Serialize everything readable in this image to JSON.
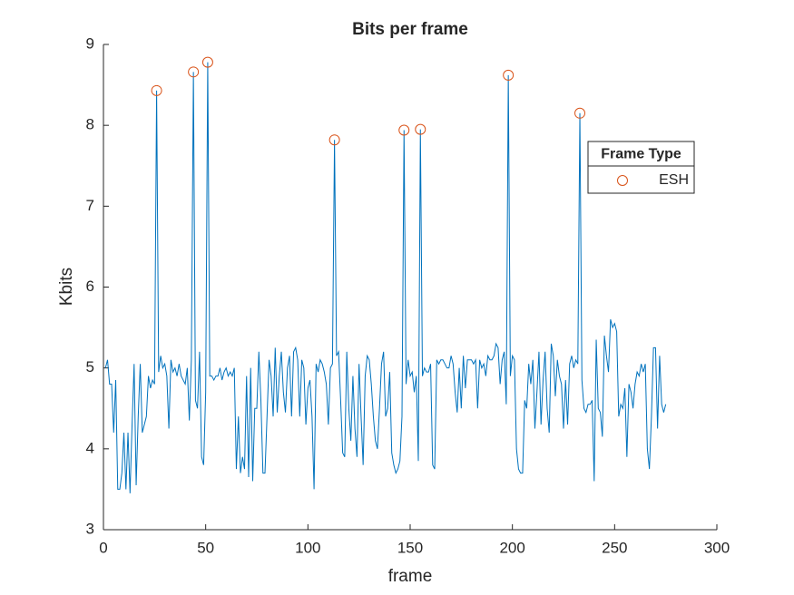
{
  "chart_data": {
    "type": "line",
    "title": "Bits per frame",
    "xlabel": "frame",
    "ylabel": "Kbits",
    "xlim": [
      0,
      300
    ],
    "xticks": [
      0,
      50,
      100,
      150,
      200,
      250,
      300
    ],
    "ylim": [
      3,
      9
    ],
    "yticks": [
      3,
      4,
      5,
      6,
      7,
      8,
      9
    ],
    "grid": false,
    "legend": {
      "title": "Frame Type",
      "position": "northeast"
    },
    "series": [
      {
        "type": "line",
        "color": "#0072bd",
        "x": [
          1,
          2,
          3,
          4,
          5,
          6,
          7,
          8,
          9,
          10,
          11,
          12,
          13,
          14,
          15,
          16,
          17,
          18,
          19,
          20,
          21,
          22,
          23,
          24,
          25,
          26,
          27,
          28,
          29,
          30,
          31,
          32,
          33,
          34,
          35,
          36,
          37,
          38,
          39,
          40,
          41,
          42,
          43,
          44,
          45,
          46,
          47,
          48,
          49,
          50,
          51,
          52,
          53,
          54,
          55,
          56,
          57,
          58,
          59,
          60,
          61,
          62,
          63,
          64,
          65,
          66,
          67,
          68,
          69,
          70,
          71,
          72,
          73,
          74,
          75,
          76,
          77,
          78,
          79,
          80,
          81,
          82,
          83,
          84,
          85,
          86,
          87,
          88,
          89,
          90,
          91,
          92,
          93,
          94,
          95,
          96,
          97,
          98,
          99,
          100,
          101,
          102,
          103,
          104,
          105,
          106,
          107,
          108,
          109,
          110,
          111,
          112,
          113,
          114,
          115,
          116,
          117,
          118,
          119,
          120,
          121,
          122,
          123,
          124,
          125,
          126,
          127,
          128,
          129,
          130,
          131,
          132,
          133,
          134,
          135,
          136,
          137,
          138,
          139,
          140,
          141,
          142,
          143,
          144,
          145,
          146,
          147,
          148,
          149,
          150,
          151,
          152,
          153,
          154,
          155,
          156,
          157,
          158,
          159,
          160,
          161,
          162,
          163,
          164,
          165,
          166,
          167,
          168,
          169,
          170,
          171,
          172,
          173,
          174,
          175,
          176,
          177,
          178,
          179,
          180,
          181,
          182,
          183,
          184,
          185,
          186,
          187,
          188,
          189,
          190,
          191,
          192,
          193,
          194,
          195,
          196,
          197,
          198,
          199,
          200,
          201,
          202,
          203,
          204,
          205,
          206,
          207,
          208,
          209,
          210,
          211,
          212,
          213,
          214,
          215,
          216,
          217,
          218,
          219,
          220,
          221,
          222,
          223,
          224,
          225,
          226,
          227,
          228,
          229,
          230,
          231,
          232,
          233,
          234,
          235,
          236,
          237,
          238,
          239,
          240,
          241,
          242,
          243,
          244,
          245,
          246,
          247,
          248,
          249,
          250,
          251,
          252,
          253,
          254,
          255,
          256,
          257,
          258,
          259,
          260,
          261,
          262,
          263,
          264,
          265,
          266,
          267,
          268,
          269,
          270,
          271,
          272,
          273,
          274,
          275
        ],
        "values": [
          5.0,
          5.1,
          4.8,
          4.8,
          4.2,
          4.85,
          3.5,
          3.5,
          3.7,
          4.2,
          3.5,
          4.2,
          3.45,
          4.3,
          5.05,
          3.55,
          4.4,
          5.05,
          4.2,
          4.3,
          4.4,
          4.9,
          4.75,
          4.85,
          4.8,
          8.43,
          4.95,
          5.15,
          5.0,
          5.05,
          4.9,
          4.25,
          5.1,
          4.95,
          5.0,
          4.9,
          5.05,
          4.9,
          4.85,
          4.8,
          5.0,
          4.35,
          5.1,
          8.66,
          4.6,
          4.5,
          5.2,
          3.9,
          3.8,
          4.7,
          8.78,
          4.9,
          4.9,
          4.85,
          4.9,
          4.9,
          5.0,
          4.85,
          4.95,
          5.0,
          4.9,
          4.95,
          4.9,
          5.0,
          3.75,
          4.4,
          3.7,
          3.9,
          3.75,
          4.9,
          3.65,
          5.0,
          3.6,
          4.5,
          4.5,
          5.2,
          4.6,
          3.7,
          3.7,
          4.4,
          5.1,
          4.9,
          4.4,
          5.25,
          4.45,
          4.9,
          5.2,
          4.7,
          4.45,
          5.0,
          5.15,
          4.4,
          5.2,
          5.25,
          5.1,
          4.4,
          5.1,
          5.0,
          4.3,
          4.75,
          4.85,
          4.4,
          3.5,
          5.05,
          4.95,
          5.1,
          5.05,
          4.95,
          4.8,
          4.3,
          5.0,
          5.05,
          7.82,
          5.15,
          5.2,
          4.6,
          3.95,
          3.9,
          5.2,
          4.5,
          4.1,
          4.9,
          4.25,
          3.9,
          5.05,
          4.4,
          3.8,
          4.9,
          5.15,
          5.1,
          4.8,
          4.4,
          4.1,
          4.0,
          4.5,
          5.05,
          5.2,
          4.4,
          4.5,
          4.95,
          3.95,
          3.8,
          3.7,
          3.75,
          3.85,
          4.4,
          7.94,
          4.8,
          5.1,
          4.9,
          4.95,
          4.7,
          4.9,
          3.85,
          7.95,
          4.9,
          5.0,
          4.95,
          4.95,
          5.05,
          3.8,
          3.75,
          5.1,
          5.05,
          5.1,
          5.1,
          5.05,
          5.0,
          5.0,
          5.15,
          5.05,
          4.7,
          4.45,
          5.0,
          4.5,
          5.15,
          4.75,
          5.1,
          5.1,
          5.1,
          5.05,
          5.1,
          4.5,
          5.1,
          5.0,
          5.05,
          4.9,
          5.15,
          5.1,
          5.1,
          5.15,
          5.3,
          5.25,
          4.8,
          5.1,
          5.2,
          4.55,
          8.62,
          4.9,
          5.15,
          5.1,
          4.0,
          3.75,
          3.7,
          3.7,
          4.6,
          4.5,
          5.05,
          4.8,
          5.1,
          4.25,
          4.7,
          5.2,
          4.3,
          4.85,
          5.2,
          4.5,
          4.2,
          5.3,
          5.15,
          4.65,
          5.1,
          4.9,
          4.8,
          4.25,
          4.85,
          4.3,
          5.05,
          5.15,
          5.0,
          5.1,
          5.05,
          8.15,
          4.85,
          4.5,
          4.45,
          4.55,
          4.55,
          4.6,
          3.6,
          5.35,
          4.5,
          4.45,
          4.15,
          5.4,
          5.15,
          4.95,
          5.6,
          5.5,
          5.55,
          5.45,
          4.4,
          4.55,
          4.5,
          4.75,
          3.9,
          4.8,
          4.7,
          4.5,
          4.8,
          4.95,
          4.9,
          5.05,
          4.95,
          5.05,
          4.0,
          3.75,
          4.4,
          5.25,
          5.25,
          4.25,
          5.15,
          4.55,
          4.45,
          4.55
        ]
      },
      {
        "type": "scatter",
        "name": "ESH",
        "color": "#d95319",
        "x": [
          26,
          44,
          51,
          113,
          147,
          155,
          198,
          233
        ],
        "values": [
          8.43,
          8.66,
          8.78,
          7.82,
          7.94,
          7.95,
          8.62,
          8.15
        ]
      }
    ]
  }
}
